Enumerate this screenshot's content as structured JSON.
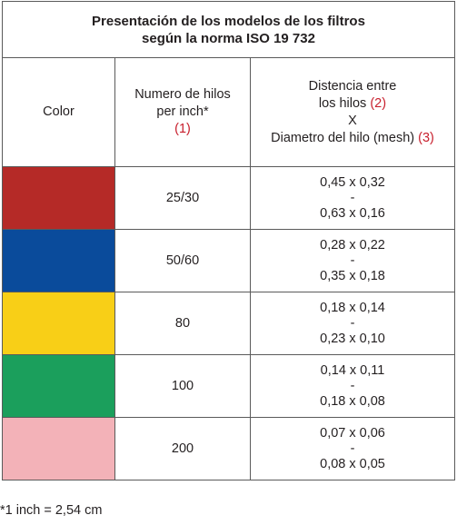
{
  "table": {
    "title_line1": "Presentación de los modelos de los filtros",
    "title_line2": "según la norma ISO 19 732",
    "headers": {
      "color": "Color",
      "hilos_line1": "Numero de hilos",
      "hilos_line2": "per inch*",
      "hilos_ref": "(1)",
      "dist_line1": "Distencia entre",
      "dist_line2_text": "los hilos",
      "dist_line2_ref": "(2)",
      "dist_x": "X",
      "dist_line4_text": "Diametro del hilo (mesh)",
      "dist_line4_ref": "(3)"
    },
    "rows": [
      {
        "color": "#b52a27",
        "hilos": "25/30",
        "dist_top": "0,45 x 0,32",
        "dist_sep": "-",
        "dist_bottom": "0,63 x 0,16"
      },
      {
        "color": "#0a4b9b",
        "hilos": "50/60",
        "dist_top": "0,28 x 0,22",
        "dist_sep": "-",
        "dist_bottom": "0,35 x 0,18"
      },
      {
        "color": "#f8cf17",
        "hilos": "80",
        "dist_top": "0,18 x 0,14",
        "dist_sep": "-",
        "dist_bottom": "0,23 x 0,10"
      },
      {
        "color": "#1b9f5c",
        "hilos": "100",
        "dist_top": "0,14 x 0,11",
        "dist_sep": "-",
        "dist_bottom": "0,18 x 0,08"
      },
      {
        "color": "#f3b2b8",
        "hilos": "200",
        "dist_top": "0,07 x 0,06",
        "dist_sep": "-",
        "dist_bottom": "0,08 x 0,05"
      }
    ]
  },
  "footnote": "*1 inch = 2,54 cm",
  "colors": {
    "reference_red": "#c8202e",
    "text": "#231f20",
    "border": "#5a5a5a"
  }
}
